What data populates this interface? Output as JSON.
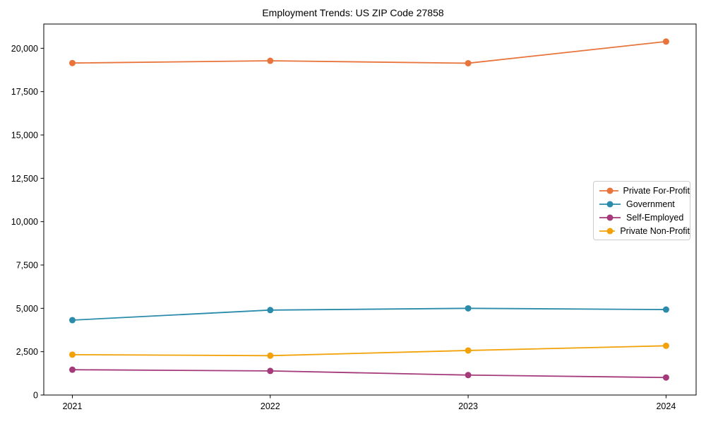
{
  "chart_data": {
    "type": "line",
    "title": "Employment Trends: US ZIP Code 27858",
    "xlabel": "",
    "ylabel": "",
    "x_categories": [
      "2021",
      "2022",
      "2023",
      "2024"
    ],
    "series": [
      {
        "name": "Private For-Profit",
        "color": "#e8743b",
        "values": [
          19150,
          19280,
          19140,
          20390
        ]
      },
      {
        "name": "Government",
        "color": "#2a8caa",
        "values": [
          4320,
          4900,
          5000,
          4930
        ]
      },
      {
        "name": "Self-Employed",
        "color": "#a43a7a",
        "values": [
          1460,
          1390,
          1150,
          1010
        ]
      },
      {
        "name": "Private Non-Profit",
        "color": "#f2a208",
        "values": [
          2330,
          2270,
          2570,
          2840
        ]
      }
    ],
    "ylim": [
      0,
      21400
    ],
    "yticks": [
      0,
      2500,
      5000,
      7500,
      10000,
      12500,
      15000,
      17500,
      20000
    ],
    "ytick_labels": [
      "0",
      "2,500",
      "5,000",
      "7,500",
      "10,000",
      "12,500",
      "15,000",
      "17,500",
      "20,000"
    ],
    "grid": false,
    "legend_position": "center-right",
    "marker": "circle",
    "frame": true
  }
}
